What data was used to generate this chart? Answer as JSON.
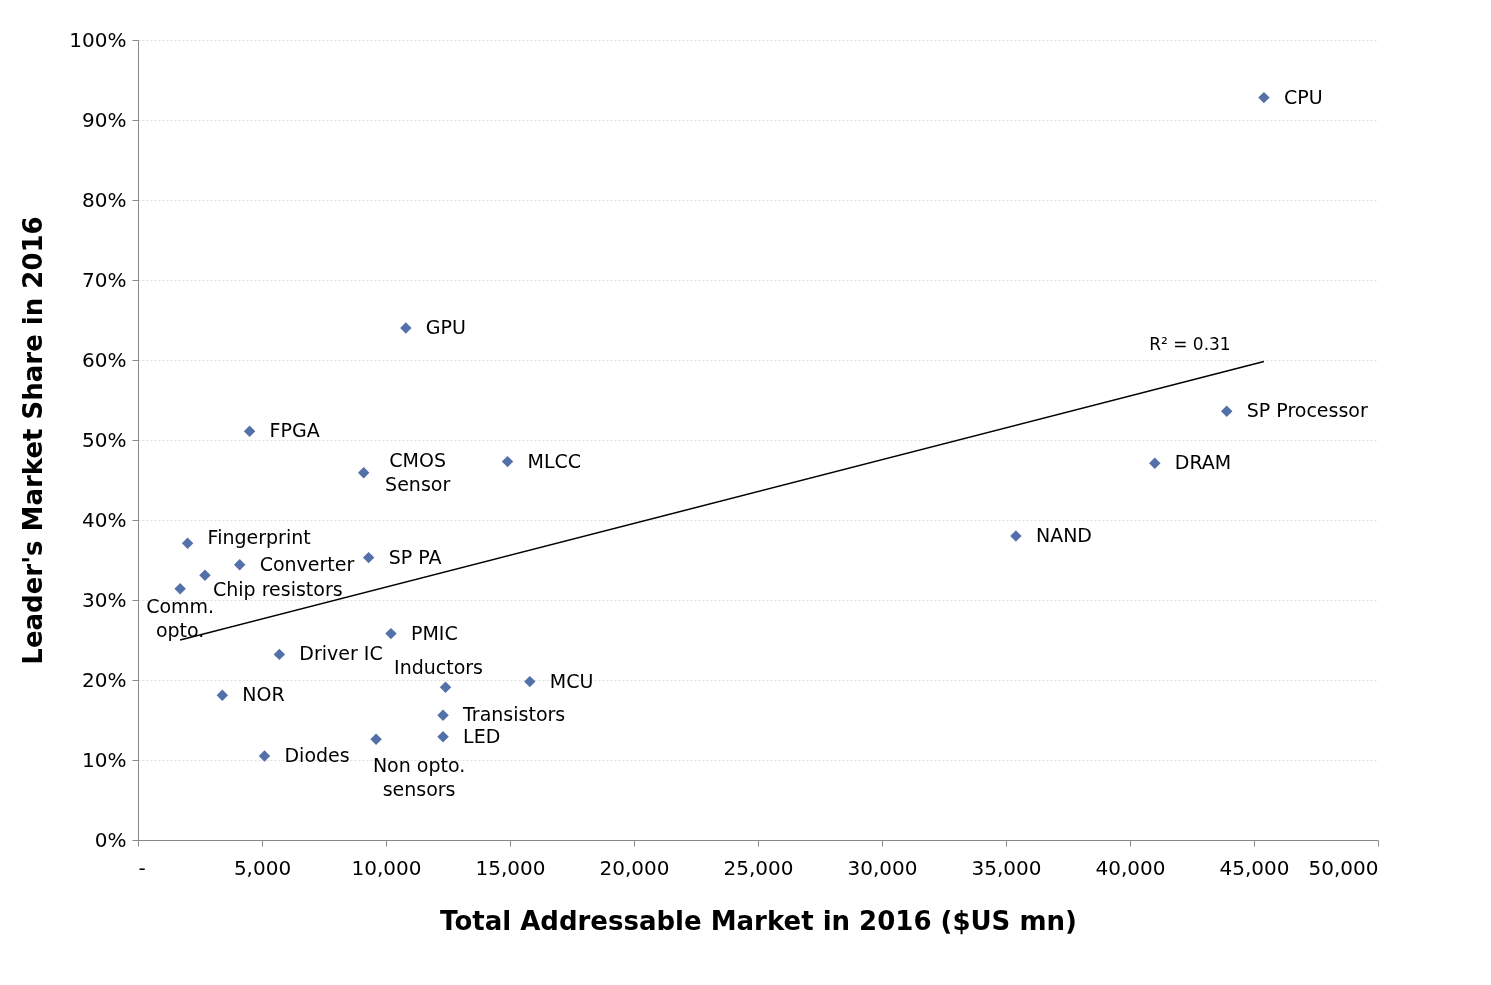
{
  "chart_data": {
    "type": "scatter",
    "xlabel": "Total Addressable Market in 2016 ($US mn)",
    "ylabel": "Leader's Market Share in 2016",
    "x": [
      45400,
      10800,
      4500,
      9100,
      14900,
      43900,
      41000,
      35400,
      2000,
      4100,
      9300,
      2700,
      1700,
      10200,
      5700,
      12400,
      15800,
      3400,
      12300,
      12300,
      9600,
      5100
    ],
    "series": [
      {
        "color": "#5470a8",
        "marker": "diamond",
        "values": [
          92.8,
          64.0,
          51.1,
          45.9,
          47.3,
          53.6,
          47.1,
          38.0,
          37.1,
          34.4,
          35.3,
          33.1,
          31.4,
          25.8,
          23.2,
          19.1,
          19.8,
          18.1,
          15.6,
          12.9,
          12.6,
          10.5
        ]
      },
      {
        "type": "line",
        "marker": "none",
        "color": "#000000",
        "x": [
          1700,
          45400
        ],
        "values": [
          25.0,
          59.8
        ]
      }
    ],
    "grid": "y",
    "xlim": [
      0,
      50000
    ],
    "xticks": [
      {
        "value": 0,
        "label": "-"
      },
      {
        "value": 5000,
        "label": "5,000"
      },
      {
        "value": 10000,
        "label": "10,000"
      },
      {
        "value": 15000,
        "label": "15,000"
      },
      {
        "value": 20000,
        "label": "20,000"
      },
      {
        "value": 25000,
        "label": "25,000"
      },
      {
        "value": 30000,
        "label": "30,000"
      },
      {
        "value": 35000,
        "label": "35,000"
      },
      {
        "value": 40000,
        "label": "40,000"
      },
      {
        "value": 45000,
        "label": "45,000"
      },
      {
        "value": 50000,
        "label": "50,000"
      }
    ],
    "ylim": [
      0,
      100
    ],
    "yticks": [
      {
        "value": 0,
        "label": "0%"
      },
      {
        "value": 10,
        "label": "10%"
      },
      {
        "value": 20,
        "label": "20%"
      },
      {
        "value": 30,
        "label": "30%"
      },
      {
        "value": 40,
        "label": "40%"
      },
      {
        "value": 50,
        "label": "50%"
      },
      {
        "value": 60,
        "label": "60%"
      },
      {
        "value": 70,
        "label": "70%"
      },
      {
        "value": 80,
        "label": "80%"
      },
      {
        "value": 90,
        "label": "90%"
      },
      {
        "value": 100,
        "label": "100%"
      }
    ],
    "annotations": [
      {
        "text": "CPU",
        "x": 45400,
        "y": 92.8
      },
      {
        "text": "GPU",
        "x": 10800,
        "y": 64.0
      },
      {
        "text": "FPGA",
        "x": 4500,
        "y": 51.1
      },
      {
        "text": "CMOS\nSensor",
        "x": 9100,
        "y": 45.9
      },
      {
        "text": "MLCC",
        "x": 14900,
        "y": 47.3
      },
      {
        "text": "SP Processor",
        "x": 43900,
        "y": 53.6
      },
      {
        "text": "DRAM",
        "x": 41000,
        "y": 47.1
      },
      {
        "text": "NAND",
        "x": 35400,
        "y": 38.0
      },
      {
        "text": "Fingerprint",
        "x": 2000,
        "y": 37.1
      },
      {
        "text": "Converter",
        "x": 4100,
        "y": 34.4
      },
      {
        "text": "SP PA",
        "x": 9300,
        "y": 35.3
      },
      {
        "text": "Chip resistors",
        "x": 2700,
        "y": 33.1
      },
      {
        "text": "Comm.\nopto.",
        "x": 1700,
        "y": 31.4
      },
      {
        "text": "PMIC",
        "x": 10200,
        "y": 25.8
      },
      {
        "text": "Driver IC",
        "x": 5700,
        "y": 23.2
      },
      {
        "text": "Inductors",
        "x": 12400,
        "y": 19.1
      },
      {
        "text": "MCU",
        "x": 15800,
        "y": 19.8
      },
      {
        "text": "NOR",
        "x": 3400,
        "y": 18.1
      },
      {
        "text": "Transistors",
        "x": 12300,
        "y": 15.6
      },
      {
        "text": "LED",
        "x": 12300,
        "y": 12.9
      },
      {
        "text": "Non opto.\nsensors",
        "x": 9600,
        "y": 12.6
      },
      {
        "text": "Diodes",
        "x": 5100,
        "y": 10.5
      },
      {
        "text": "R² = 0.31",
        "x": 45400,
        "y": 59.8
      }
    ]
  }
}
